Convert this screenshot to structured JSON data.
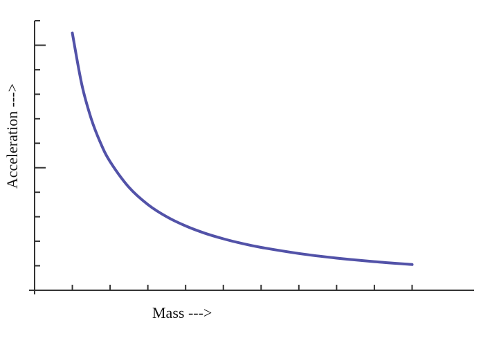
{
  "chart_data": {
    "type": "line",
    "title": "",
    "xlabel": "Mass --->",
    "ylabel": "Acceleration --->",
    "relationship": "inverse (acceleration proportional to 1/mass)",
    "grid": false,
    "legend": "none",
    "x_ticks": 10,
    "y_ticks": 11,
    "xlim": [
      0,
      11
    ],
    "ylim": [
      0,
      11
    ],
    "series": [
      {
        "color": "#5252a8",
        "x": [
          1,
          1.25,
          1.5,
          1.75,
          2,
          2.5,
          3,
          3.5,
          4,
          4.5,
          5,
          5.5,
          6,
          7,
          8,
          9,
          10
        ],
        "y": [
          10.5,
          8.4,
          7.0,
          6.0,
          5.25,
          4.2,
          3.5,
          3.0,
          2.625,
          2.333,
          2.1,
          1.909,
          1.75,
          1.5,
          1.3125,
          1.1667,
          1.05
        ]
      }
    ]
  }
}
